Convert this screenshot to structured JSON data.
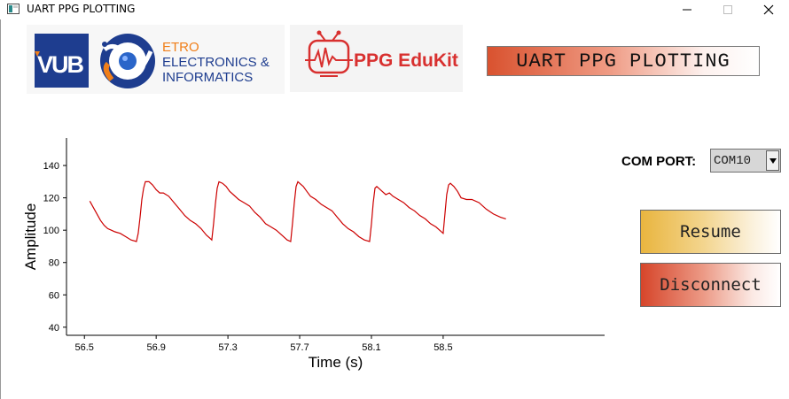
{
  "window": {
    "title": "UART PPG PLOTTING",
    "icons": [
      "app-icon",
      "minimize-icon",
      "maximize-icon",
      "close-icon"
    ]
  },
  "logos": {
    "vub": "VUB",
    "etro": [
      "ETRO",
      "ELECTRONICS &",
      "INFORMATICS"
    ],
    "ppg": "PPG EduKit"
  },
  "header": {
    "title": "UART PPG PLOTTING"
  },
  "com_port": {
    "label": "COM PORT:",
    "value": "COM10"
  },
  "buttons": {
    "resume": "Resume",
    "disconnect": "Disconnect"
  },
  "colors": {
    "trace": "#cc0000",
    "header_gradient_start": "#d9522f",
    "resume_gradient_start": "#e9b53f",
    "disconnect_gradient_start": "#d6452a",
    "vub_blue": "#1e3d8f",
    "vub_orange": "#f07f1a",
    "ppg_red": "#d8302f"
  },
  "chart_data": {
    "type": "line",
    "xlabel": "Time (s)",
    "ylabel": "Amplitude",
    "xlim": [
      56.4,
      59.4
    ],
    "ylim": [
      35,
      157
    ],
    "xticks": [
      "56.5",
      "56.9",
      "57.3",
      "57.7",
      "58.1",
      "58.5"
    ],
    "yticks": [
      "40",
      "60",
      "80",
      "100",
      "120",
      "140"
    ],
    "grid": false,
    "series": [
      {
        "x": [
          56.53,
          56.55,
          56.57,
          56.59,
          56.61,
          56.63,
          56.65,
          56.67,
          56.7,
          56.73,
          56.76,
          56.79,
          56.8,
          56.81,
          56.82,
          56.83,
          56.84,
          56.86,
          56.88,
          56.9,
          56.92,
          56.94,
          56.97,
          57.0,
          57.03,
          57.06,
          57.09,
          57.12,
          57.15,
          57.18,
          57.2,
          57.21,
          57.22,
          57.23,
          57.24,
          57.25,
          57.27,
          57.29,
          57.31,
          57.33,
          57.36,
          57.39,
          57.42,
          57.45,
          57.48,
          57.51,
          57.54,
          57.57,
          57.6,
          57.63,
          57.65,
          57.66,
          57.67,
          57.68,
          57.69,
          57.7,
          57.72,
          57.74,
          57.76,
          57.79,
          57.82,
          57.85,
          57.88,
          57.91,
          57.94,
          57.97,
          58.0,
          58.03,
          58.06,
          58.09,
          58.1,
          58.11,
          58.12,
          58.13,
          58.14,
          58.16,
          58.18,
          58.2,
          58.22,
          58.25,
          58.28,
          58.31,
          58.34,
          58.37,
          58.4,
          58.43,
          58.46,
          58.48,
          58.5,
          58.51,
          58.52,
          58.53,
          58.54,
          58.56,
          58.58,
          58.6,
          58.63,
          58.66,
          58.7,
          58.74,
          58.78,
          58.82,
          58.85
        ],
        "y": [
          118,
          114,
          110,
          106,
          103,
          101,
          100,
          99,
          98,
          96,
          94,
          93,
          98,
          108,
          119,
          126,
          130,
          130,
          128,
          125,
          123,
          123,
          121,
          117,
          113,
          109,
          106,
          104,
          101,
          97,
          95,
          94,
          104,
          116,
          126,
          130,
          129,
          127,
          124,
          122,
          119,
          117,
          115,
          111,
          108,
          104,
          102,
          100,
          97,
          94,
          93,
          104,
          117,
          127,
          130,
          129,
          127,
          124,
          121,
          119,
          116,
          114,
          112,
          108,
          104,
          101,
          99,
          96,
          94,
          93,
          104,
          117,
          126,
          127,
          126,
          124,
          122,
          123,
          121,
          119,
          117,
          114,
          112,
          109,
          107,
          104,
          102,
          100,
          98,
          110,
          122,
          128,
          129,
          127,
          124,
          120,
          119,
          119,
          117,
          113,
          110,
          108,
          107
        ]
      }
    ]
  }
}
